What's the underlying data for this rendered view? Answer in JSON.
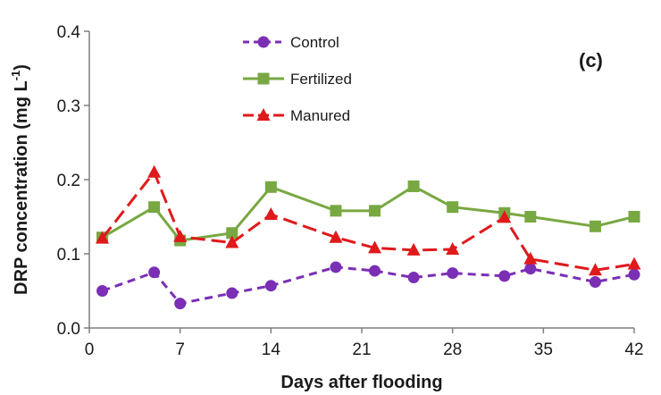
{
  "chart_data": {
    "type": "line",
    "panel_label": "(c)",
    "xlabel": "Days after flooding",
    "ylabel": "DRP concentration (mg L",
    "ylabel_sup": "-1",
    "ylabel_close": ")",
    "xlim": [
      0,
      42
    ],
    "ylim": [
      0.0,
      0.4
    ],
    "xticks": [
      0,
      7,
      14,
      21,
      28,
      35,
      42
    ],
    "yticks": [
      "0.0",
      "0.1",
      "0.2",
      "0.3",
      "0.4"
    ],
    "grid": false,
    "legend_position": "top-center",
    "series": [
      {
        "name": "Control",
        "color": "#7b2fb5",
        "marker": "circle",
        "dash": "dashed",
        "x": [
          1,
          5,
          7,
          11,
          14,
          19,
          22,
          25,
          28,
          32,
          34,
          39,
          42
        ],
        "y": [
          0.05,
          0.075,
          0.033,
          0.047,
          0.057,
          0.082,
          0.077,
          0.068,
          0.074,
          0.07,
          0.08,
          0.062,
          0.072
        ]
      },
      {
        "name": "Fertilized",
        "color": "#78a842",
        "marker": "square",
        "dash": "solid",
        "x": [
          1,
          5,
          7,
          11,
          14,
          19,
          22,
          25,
          28,
          32,
          34,
          39,
          42
        ],
        "y": [
          0.122,
          0.163,
          0.118,
          0.128,
          0.19,
          0.158,
          0.158,
          0.191,
          0.163,
          0.155,
          0.15,
          0.137,
          0.15
        ]
      },
      {
        "name": "Manured",
        "color": "#e0191b",
        "marker": "triangle",
        "dash": "longdash",
        "x": [
          1,
          5,
          7,
          11,
          14,
          19,
          22,
          25,
          28,
          32,
          34,
          39,
          42
        ],
        "y": [
          0.121,
          0.21,
          0.123,
          0.115,
          0.153,
          0.122,
          0.108,
          0.105,
          0.106,
          0.149,
          0.093,
          0.078,
          0.086
        ]
      }
    ]
  }
}
